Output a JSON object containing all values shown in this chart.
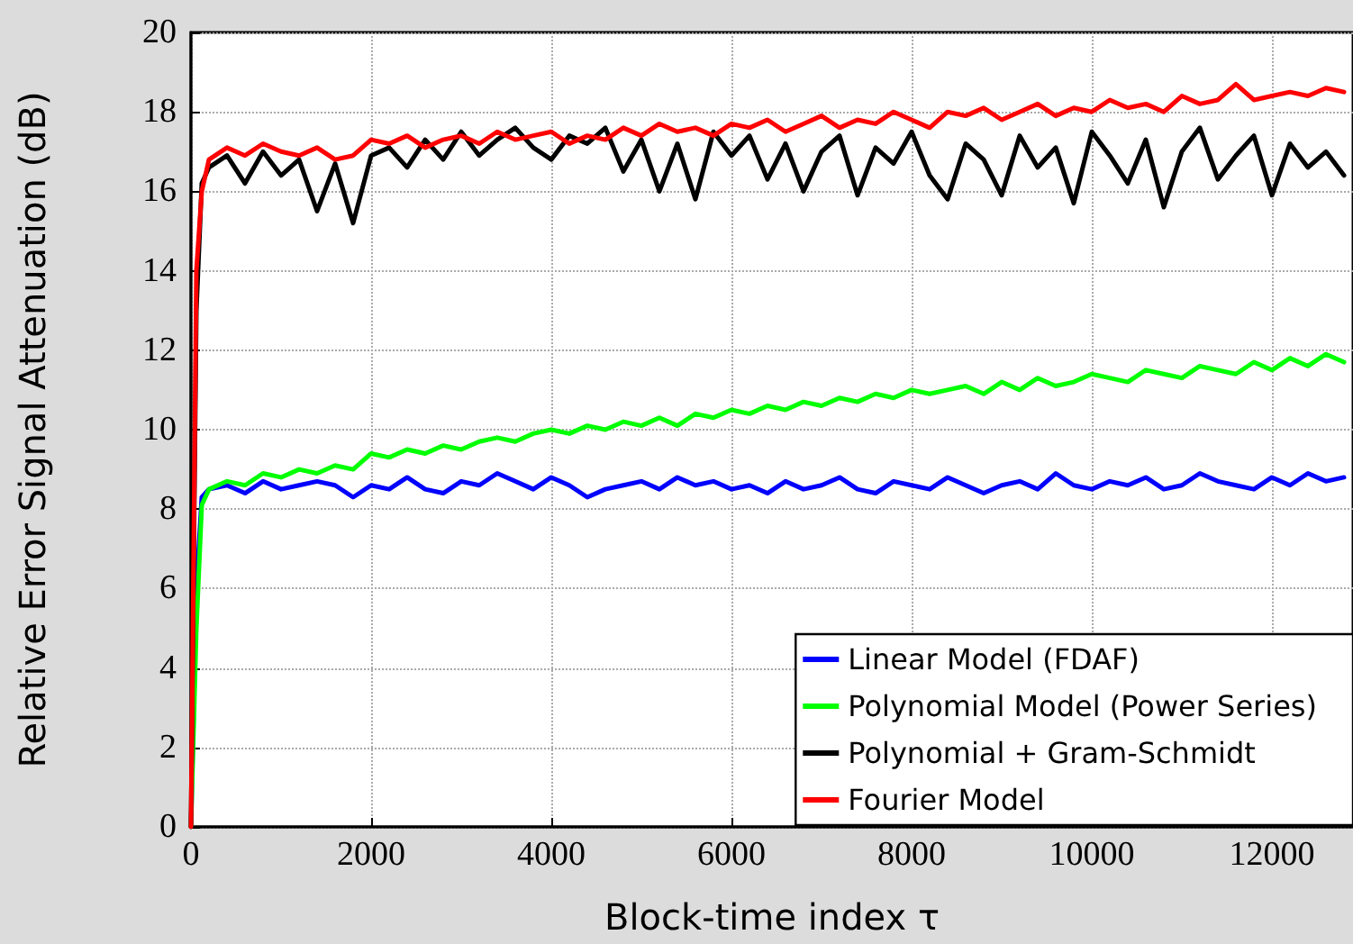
{
  "chart_data": {
    "type": "line",
    "xlabel": "Block-time index τ",
    "ylabel": "Relative Error Signal Attenuation (dB)",
    "x": [
      0,
      60,
      120,
      200,
      400,
      600,
      800,
      1000,
      1200,
      1400,
      1600,
      1800,
      2000,
      2200,
      2400,
      2600,
      2800,
      3000,
      3200,
      3400,
      3600,
      3800,
      4000,
      4200,
      4400,
      4600,
      4800,
      5000,
      5200,
      5400,
      5600,
      5800,
      6000,
      6200,
      6400,
      6600,
      6800,
      7000,
      7200,
      7400,
      7600,
      7800,
      8000,
      8200,
      8400,
      8600,
      8800,
      9000,
      9200,
      9400,
      9600,
      9800,
      10000,
      10200,
      10400,
      10600,
      10800,
      11000,
      11200,
      11400,
      11600,
      11800,
      12000,
      12200,
      12400,
      12600,
      12800
    ],
    "xlim": [
      0,
      12900
    ],
    "xticks": [
      0,
      2000,
      4000,
      6000,
      8000,
      10000,
      12000
    ],
    "ylim": [
      0,
      20
    ],
    "yticks": [
      0,
      2,
      4,
      6,
      8,
      10,
      12,
      14,
      16,
      18,
      20
    ],
    "grid": true,
    "legend": "bottom right",
    "marker": "none",
    "line_style": "solid",
    "series": [
      {
        "name": "Linear Model (FDAF)",
        "color": "#0000ff",
        "values": [
          0,
          6,
          8.3,
          8.5,
          8.6,
          8.4,
          8.7,
          8.5,
          8.6,
          8.7,
          8.6,
          8.3,
          8.6,
          8.5,
          8.8,
          8.5,
          8.4,
          8.7,
          8.6,
          8.9,
          8.7,
          8.5,
          8.8,
          8.6,
          8.3,
          8.5,
          8.6,
          8.7,
          8.5,
          8.8,
          8.6,
          8.7,
          8.5,
          8.6,
          8.4,
          8.7,
          8.5,
          8.6,
          8.8,
          8.5,
          8.4,
          8.7,
          8.6,
          8.5,
          8.8,
          8.6,
          8.4,
          8.6,
          8.7,
          8.5,
          8.9,
          8.6,
          8.5,
          8.7,
          8.6,
          8.8,
          8.5,
          8.6,
          8.9,
          8.7,
          8.6,
          8.5,
          8.8,
          8.6,
          8.9,
          8.7,
          8.8
        ]
      },
      {
        "name": "Polynomial Model (Power Series)",
        "color": "#00ff00",
        "values": [
          0,
          5,
          8.1,
          8.5,
          8.7,
          8.6,
          8.9,
          8.8,
          9.0,
          8.9,
          9.1,
          9.0,
          9.4,
          9.3,
          9.5,
          9.4,
          9.6,
          9.5,
          9.7,
          9.8,
          9.7,
          9.9,
          10.0,
          9.9,
          10.1,
          10.0,
          10.2,
          10.1,
          10.3,
          10.1,
          10.4,
          10.3,
          10.5,
          10.4,
          10.6,
          10.5,
          10.7,
          10.6,
          10.8,
          10.7,
          10.9,
          10.8,
          11.0,
          10.9,
          11.0,
          11.1,
          10.9,
          11.2,
          11.0,
          11.3,
          11.1,
          11.2,
          11.4,
          11.3,
          11.2,
          11.5,
          11.4,
          11.3,
          11.6,
          11.5,
          11.4,
          11.7,
          11.5,
          11.8,
          11.6,
          11.9,
          11.7
        ]
      },
      {
        "name": "Polynomial + Gram-Schmidt",
        "color": "#000000",
        "values": [
          0,
          13,
          16.2,
          16.6,
          16.9,
          16.2,
          17.0,
          16.4,
          16.8,
          15.5,
          16.7,
          15.2,
          16.9,
          17.1,
          16.6,
          17.3,
          16.8,
          17.5,
          16.9,
          17.3,
          17.6,
          17.1,
          16.8,
          17.4,
          17.2,
          17.6,
          16.5,
          17.3,
          16.0,
          17.2,
          15.8,
          17.5,
          16.9,
          17.4,
          16.3,
          17.2,
          16.0,
          17.0,
          17.4,
          15.9,
          17.1,
          16.7,
          17.5,
          16.4,
          15.8,
          17.2,
          16.8,
          15.9,
          17.4,
          16.6,
          17.1,
          15.7,
          17.5,
          16.9,
          16.2,
          17.3,
          15.6,
          17.0,
          17.6,
          16.3,
          16.9,
          17.4,
          15.9,
          17.2,
          16.6,
          17.0,
          16.4
        ]
      },
      {
        "name": "Fourier Model",
        "color": "#ff0000",
        "values": [
          0,
          14,
          16,
          16.8,
          17.1,
          16.9,
          17.2,
          17.0,
          16.9,
          17.1,
          16.8,
          16.9,
          17.3,
          17.2,
          17.4,
          17.1,
          17.3,
          17.4,
          17.2,
          17.5,
          17.3,
          17.4,
          17.5,
          17.2,
          17.4,
          17.3,
          17.6,
          17.4,
          17.7,
          17.5,
          17.6,
          17.4,
          17.7,
          17.6,
          17.8,
          17.5,
          17.7,
          17.9,
          17.6,
          17.8,
          17.7,
          18.0,
          17.8,
          17.6,
          18.0,
          17.9,
          18.1,
          17.8,
          18.0,
          18.2,
          17.9,
          18.1,
          18.0,
          18.3,
          18.1,
          18.2,
          18.0,
          18.4,
          18.2,
          18.3,
          18.7,
          18.3,
          18.4,
          18.5,
          18.4,
          18.6,
          18.5
        ]
      }
    ]
  }
}
